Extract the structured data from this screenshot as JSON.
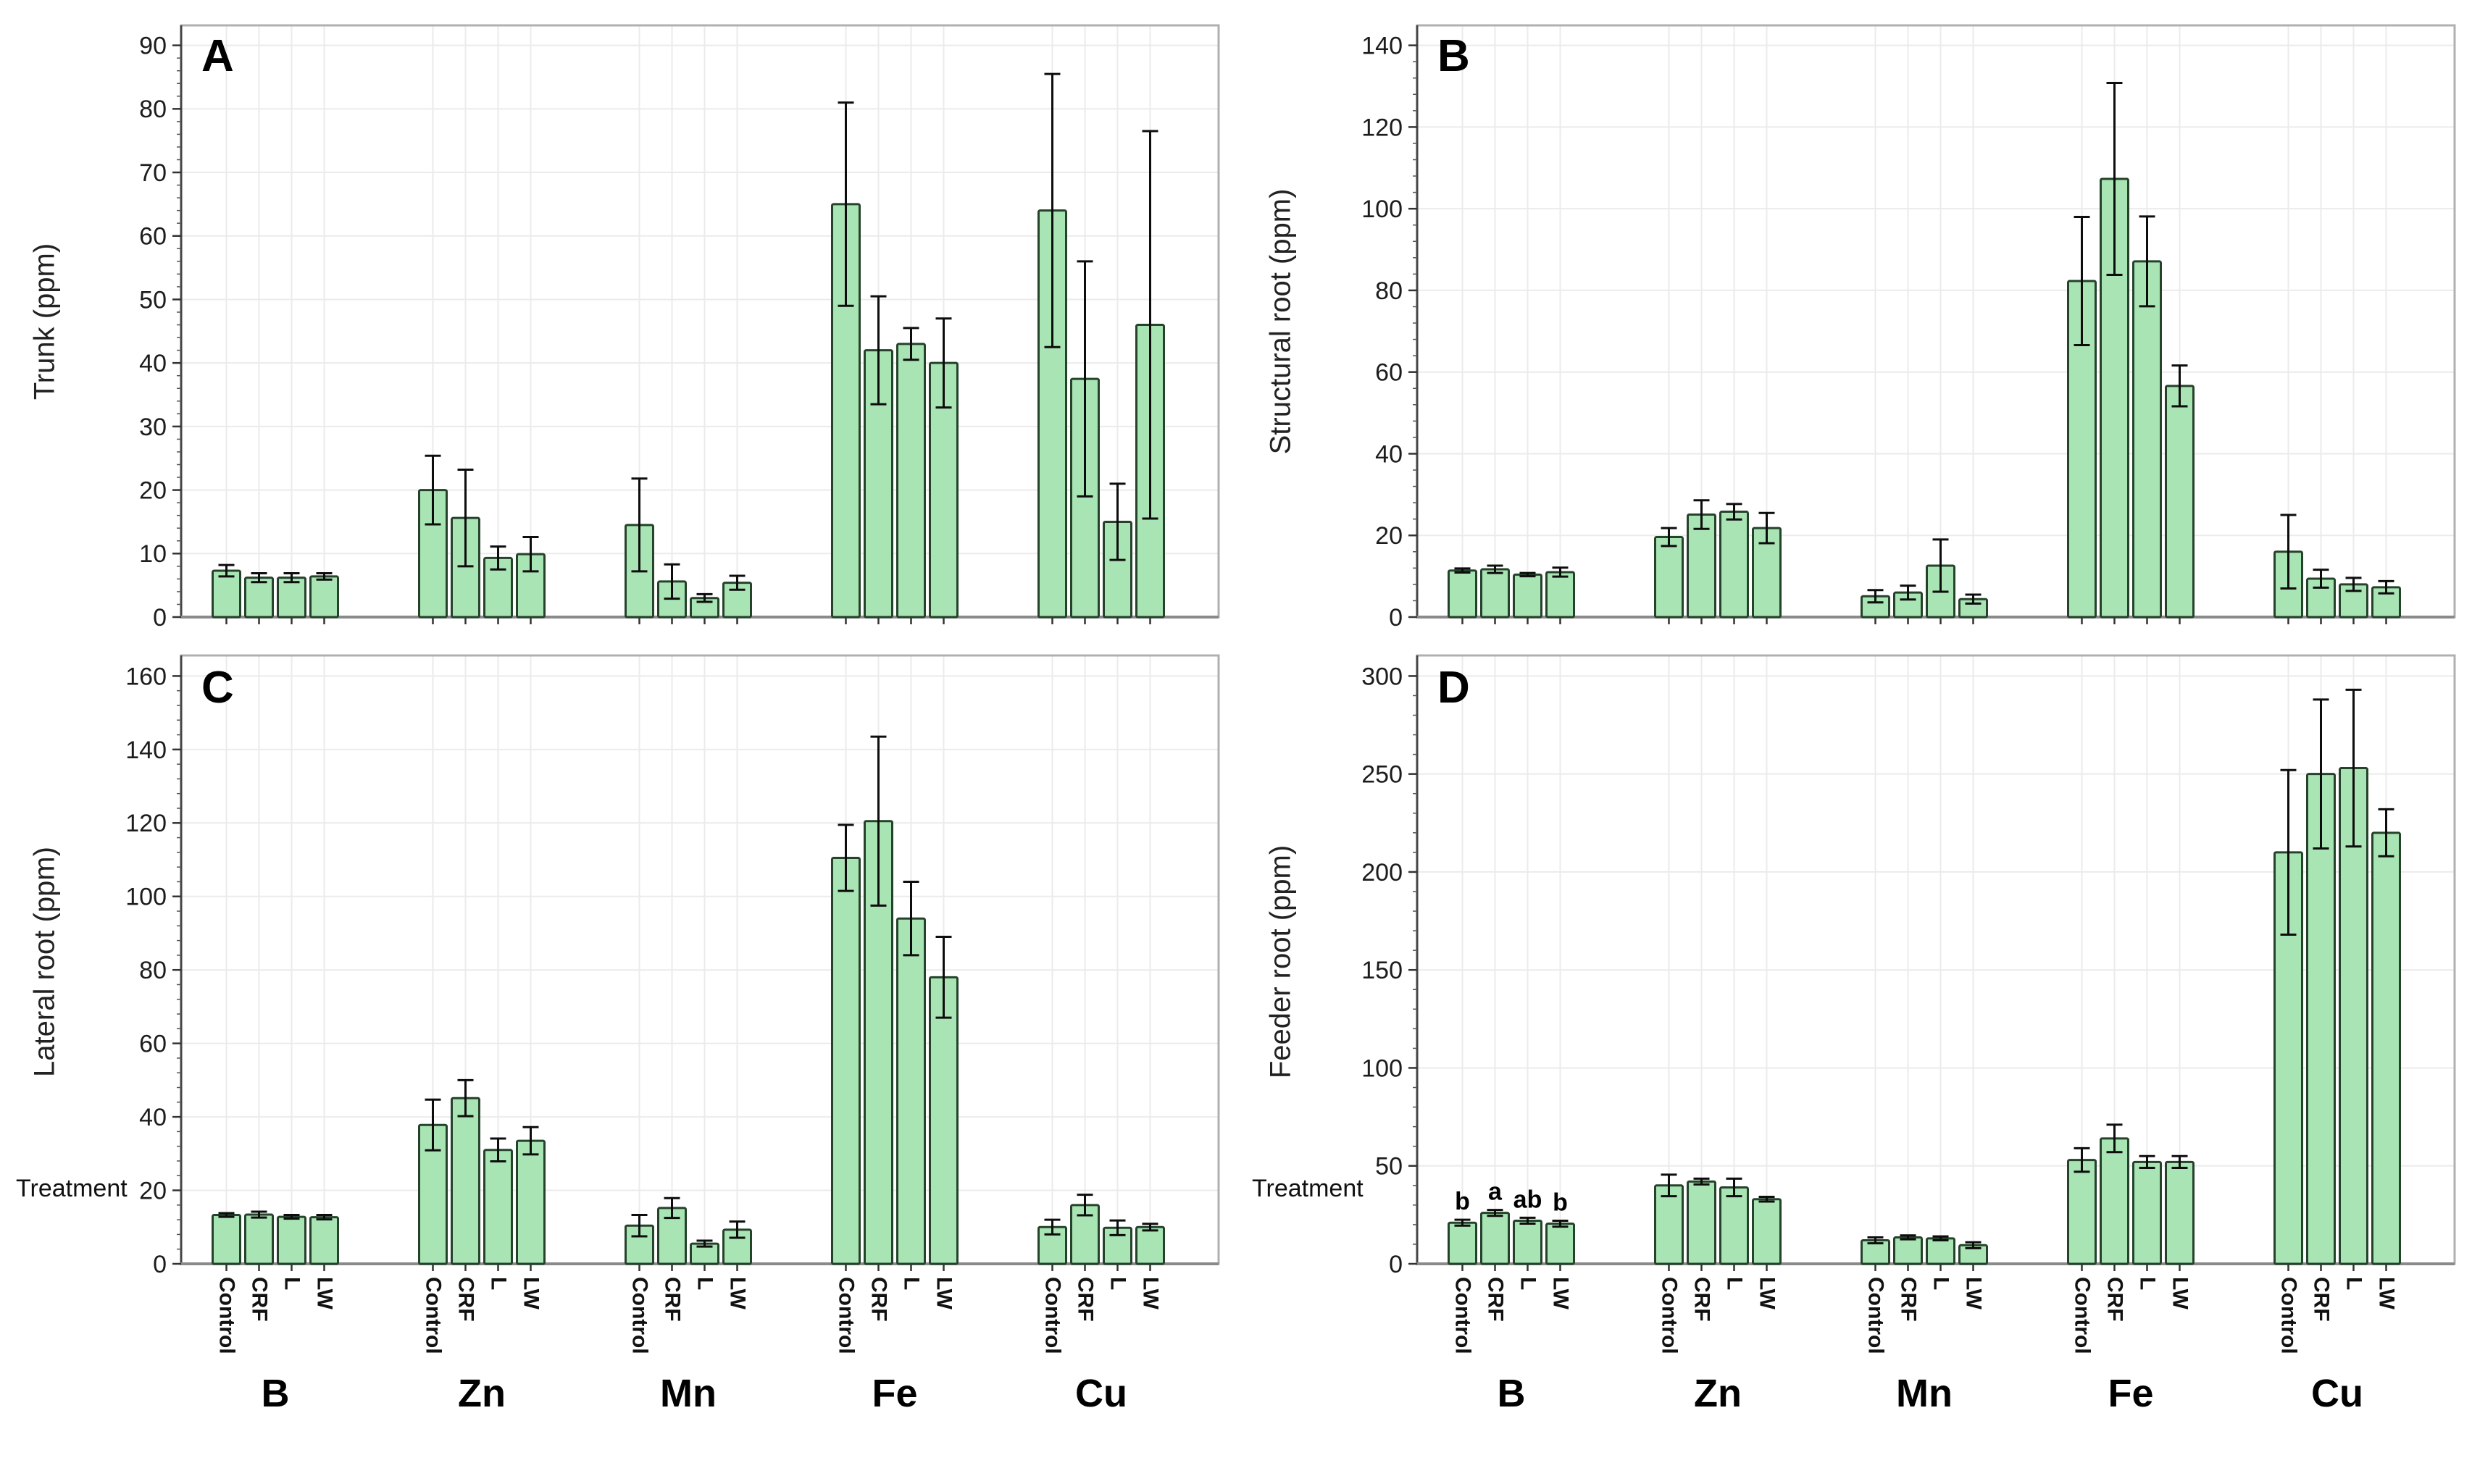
{
  "figure": {
    "xlabel": "Treatment",
    "treatments": [
      "Control",
      "CRF",
      "L",
      "LW"
    ],
    "group_labels": [
      "B",
      "Zn",
      "Mn",
      "Fe",
      "Cu"
    ],
    "colors": {
      "bar_fill": "#a9e4b4",
      "bar_stroke": "#25422b",
      "error_bar": "#0d0d0d",
      "gridline": "#ebebeb",
      "frame": "#b0b0b0",
      "axis_left": "#454545",
      "axis_bottom": "#8a8a8a",
      "tick_text": "#1c1c1c"
    }
  },
  "chart_data": [
    {
      "type": "bar",
      "panel_label": "A",
      "ylabel": "Trunk (ppm)",
      "xlabel": "Treatment",
      "ylim": [
        0,
        90
      ],
      "ytick_step": 10,
      "grid": true,
      "categories": [
        "B",
        "Zn",
        "Mn",
        "Fe",
        "Cu"
      ],
      "treatments": [
        "Control",
        "CRF",
        "L",
        "LW"
      ],
      "series": [
        {
          "name": "B",
          "values": [
            7.3,
            6.2,
            6.2,
            6.4
          ],
          "errors": [
            0.9,
            0.7,
            0.7,
            0.5
          ]
        },
        {
          "name": "Zn",
          "values": [
            20.0,
            15.6,
            9.3,
            9.9
          ],
          "errors": [
            5.4,
            7.6,
            1.8,
            2.7
          ]
        },
        {
          "name": "Mn",
          "values": [
            14.5,
            5.6,
            3.0,
            5.4
          ],
          "errors": [
            7.3,
            2.7,
            0.6,
            1.1
          ]
        },
        {
          "name": "Fe",
          "values": [
            65.0,
            42.0,
            43.0,
            40.0
          ],
          "errors": [
            16.0,
            8.5,
            2.5,
            7.0
          ]
        },
        {
          "name": "Cu",
          "values": [
            64.0,
            37.5,
            15.0,
            46.0
          ],
          "errors": [
            21.5,
            18.5,
            6.0,
            30.5
          ]
        }
      ]
    },
    {
      "type": "bar",
      "panel_label": "B",
      "ylabel": "Structural root (ppm)",
      "xlabel": "Treatment",
      "ylim": [
        0,
        140
      ],
      "ytick_step": 20,
      "grid": true,
      "categories": [
        "B",
        "Zn",
        "Mn",
        "Fe",
        "Cu"
      ],
      "treatments": [
        "Control",
        "CRF",
        "L",
        "LW"
      ],
      "series": [
        {
          "name": "B",
          "values": [
            11.4,
            11.7,
            10.4,
            11.0
          ],
          "errors": [
            0.5,
            0.9,
            0.4,
            1.1
          ]
        },
        {
          "name": "Zn",
          "values": [
            19.6,
            25.1,
            25.8,
            21.8
          ],
          "errors": [
            2.2,
            3.5,
            1.9,
            3.7
          ]
        },
        {
          "name": "Mn",
          "values": [
            5.1,
            6.0,
            12.6,
            4.4
          ],
          "errors": [
            1.5,
            1.7,
            6.4,
            1.1
          ]
        },
        {
          "name": "Fe",
          "values": [
            82.3,
            107.3,
            87.1,
            56.6
          ],
          "errors": [
            15.7,
            23.5,
            11.0,
            5.0
          ]
        },
        {
          "name": "Cu",
          "values": [
            16.0,
            9.4,
            8.0,
            7.3
          ],
          "errors": [
            9.0,
            2.2,
            1.6,
            1.5
          ]
        }
      ]
    },
    {
      "type": "bar",
      "panel_label": "C",
      "ylabel": "Lateral root (ppm)",
      "xlabel": "Treatment",
      "ylim": [
        0,
        160
      ],
      "ytick_step": 20,
      "grid": true,
      "categories": [
        "B",
        "Zn",
        "Mn",
        "Fe",
        "Cu"
      ],
      "treatments": [
        "Control",
        "CRF",
        "L",
        "LW"
      ],
      "series": [
        {
          "name": "B",
          "values": [
            13.3,
            13.4,
            12.8,
            12.7
          ],
          "errors": [
            0.5,
            0.8,
            0.5,
            0.6
          ]
        },
        {
          "name": "Zn",
          "values": [
            37.8,
            45.1,
            31.0,
            33.5
          ],
          "errors": [
            6.9,
            4.9,
            3.1,
            3.7
          ]
        },
        {
          "name": "Mn",
          "values": [
            10.4,
            15.2,
            5.5,
            9.3
          ],
          "errors": [
            2.9,
            2.7,
            0.8,
            2.2
          ]
        },
        {
          "name": "Fe",
          "values": [
            110.5,
            120.5,
            94.0,
            78.0
          ],
          "errors": [
            9.0,
            23.0,
            10.0,
            11.0
          ]
        },
        {
          "name": "Cu",
          "values": [
            10.0,
            16.0,
            9.8,
            10.0
          ],
          "errors": [
            2.0,
            2.8,
            2.0,
            0.9
          ]
        }
      ]
    },
    {
      "type": "bar",
      "panel_label": "D",
      "ylabel": "Feeder root (ppm)",
      "xlabel": "Treatment",
      "ylim": [
        0,
        300
      ],
      "ytick_step": 50,
      "grid": true,
      "categories": [
        "B",
        "Zn",
        "Mn",
        "Fe",
        "Cu"
      ],
      "treatments": [
        "Control",
        "CRF",
        "L",
        "LW"
      ],
      "series": [
        {
          "name": "B",
          "values": [
            21.0,
            26.0,
            22.0,
            20.5
          ],
          "errors": [
            1.5,
            1.5,
            1.5,
            1.5
          ],
          "letters": [
            "b",
            "a",
            "ab",
            "b"
          ]
        },
        {
          "name": "Zn",
          "values": [
            40.0,
            42.0,
            39.0,
            33.0
          ],
          "errors": [
            5.5,
            1.5,
            4.5,
            1.2
          ]
        },
        {
          "name": "Mn",
          "values": [
            12.0,
            13.5,
            13.0,
            9.5
          ],
          "errors": [
            1.5,
            1.0,
            1.0,
            1.5
          ]
        },
        {
          "name": "Fe",
          "values": [
            53.0,
            64.0,
            52.0,
            52.0
          ],
          "errors": [
            6.0,
            7.0,
            3.0,
            3.0
          ]
        },
        {
          "name": "Cu",
          "values": [
            210.0,
            250.0,
            253.0,
            220.0
          ],
          "errors": [
            42.0,
            38.0,
            40.0,
            12.0
          ]
        }
      ]
    }
  ]
}
